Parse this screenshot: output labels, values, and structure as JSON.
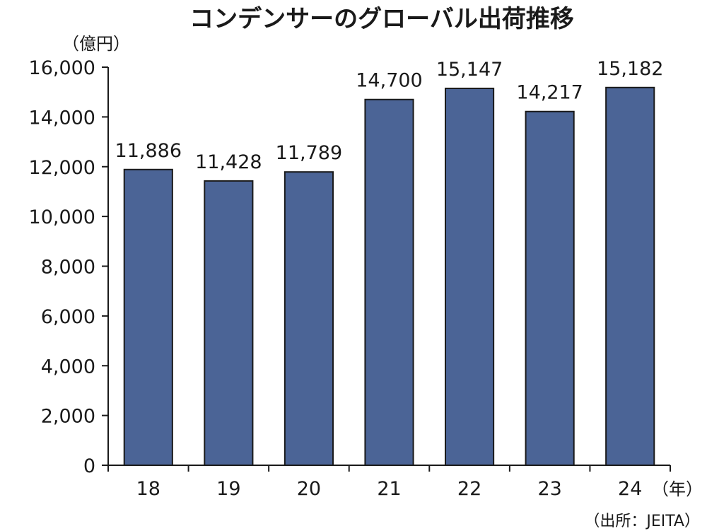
{
  "chart_data": {
    "type": "bar",
    "title": "コンデンサーのグローバル出荷推移",
    "ylabel": "（億円）",
    "xlabel": "（年）",
    "categories": [
      "18",
      "19",
      "20",
      "21",
      "22",
      "23",
      "24"
    ],
    "values": [
      11886,
      11428,
      11789,
      14700,
      15147,
      14217,
      15182
    ],
    "data_labels": [
      "11,886",
      "11,428",
      "11,789",
      "14,700",
      "15,147",
      "14,217",
      "15,182"
    ],
    "ylim": [
      0,
      16000
    ],
    "yticks": [
      0,
      2000,
      4000,
      6000,
      8000,
      10000,
      12000,
      14000,
      16000
    ],
    "ytick_labels": [
      "0",
      "2,000",
      "4,000",
      "6,000",
      "8,000",
      "10,000",
      "12,000",
      "14,000",
      "16,000"
    ],
    "grid": false,
    "bar_color": "#4b6496",
    "source": "（出所：JEITA）"
  }
}
